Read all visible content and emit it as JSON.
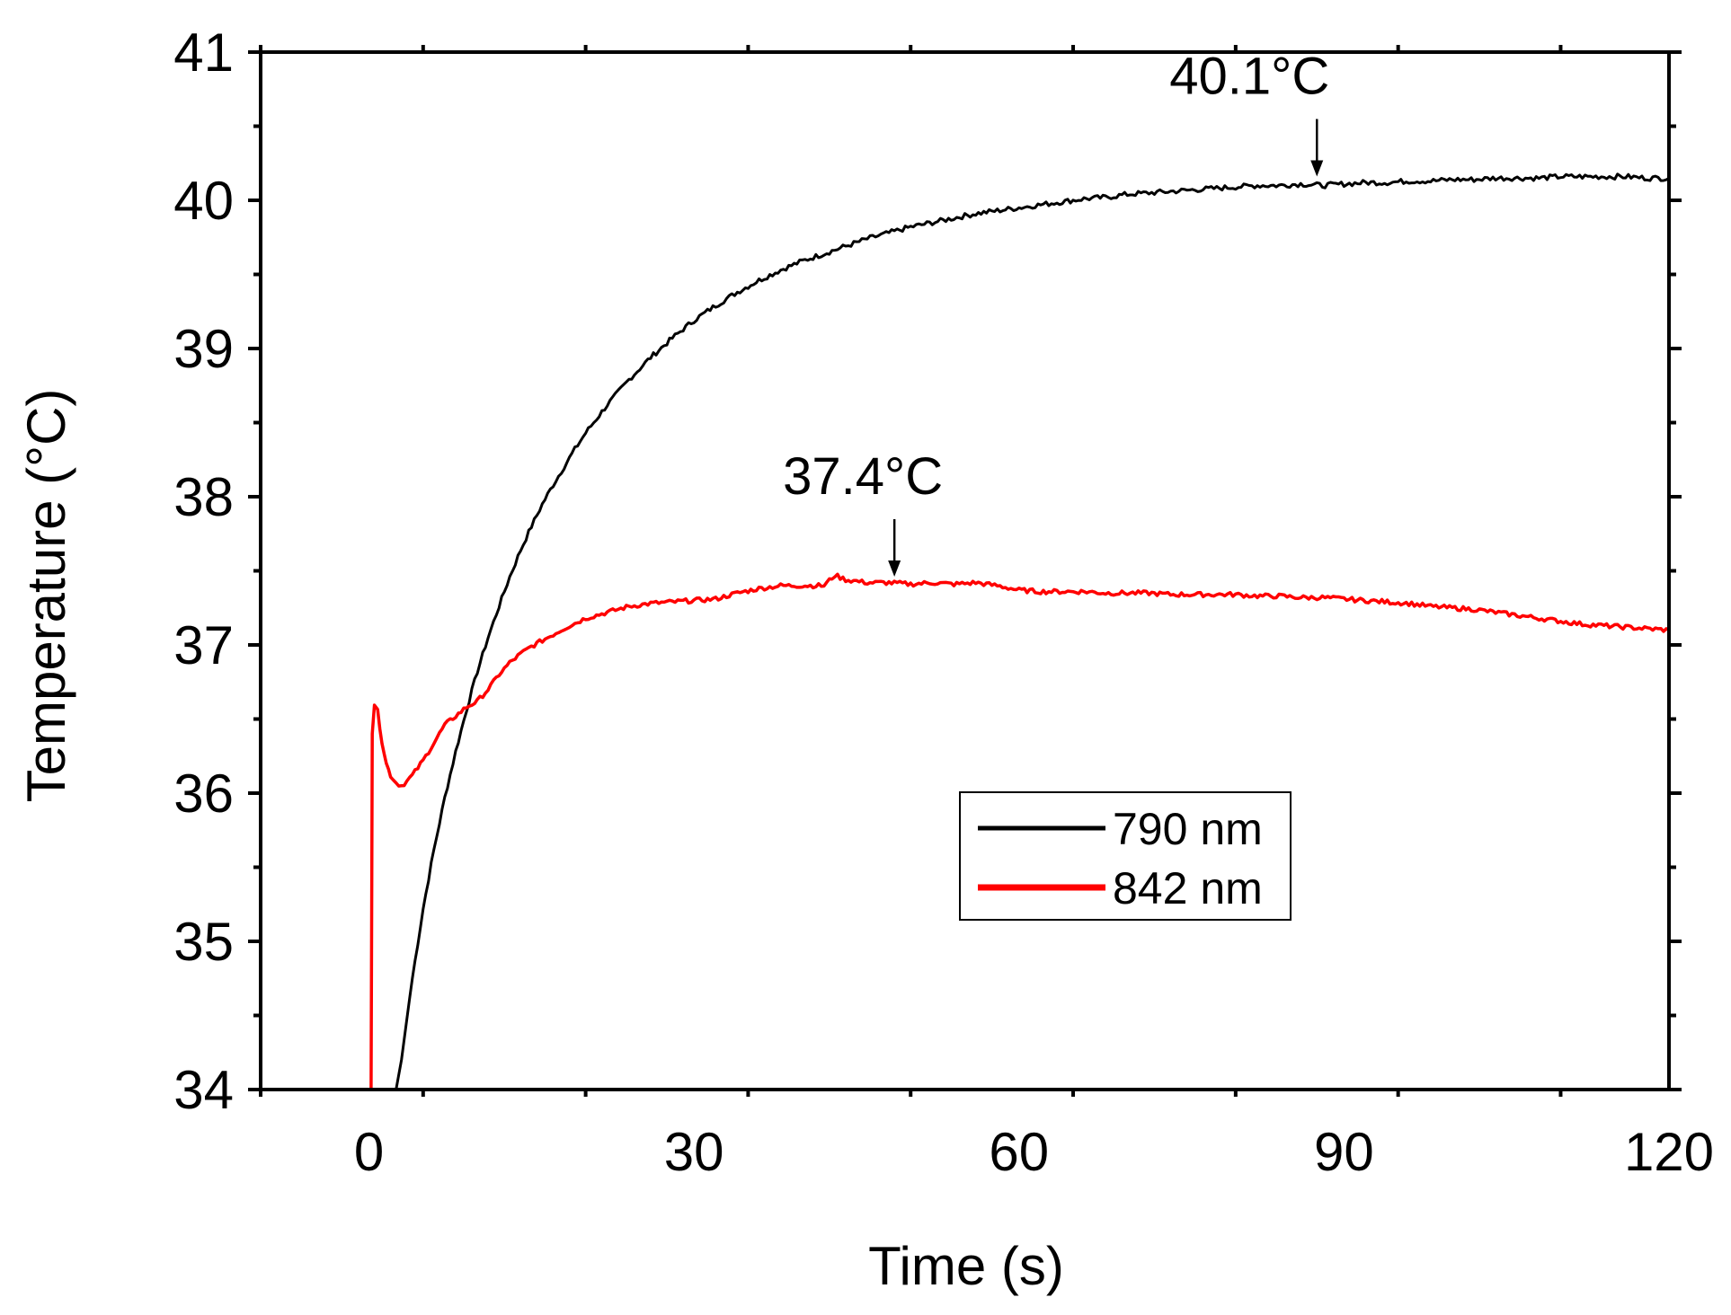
{
  "chart_data": {
    "type": "line",
    "title": "",
    "xlabel": "Time (s)",
    "ylabel": "Temperature (°C)",
    "xlim": [
      -10,
      120
    ],
    "ylim": [
      34,
      41
    ],
    "x_ticks": [
      0,
      30,
      60,
      90,
      120
    ],
    "x_tick_labels": [
      "0",
      "30",
      "60",
      "90",
      "120"
    ],
    "y_ticks": [
      34,
      35,
      36,
      37,
      38,
      39,
      40,
      41
    ],
    "y_tick_labels": [
      "34",
      "35",
      "36",
      "37",
      "38",
      "39",
      "40",
      "41"
    ],
    "grid": false,
    "legend_position": "center-right",
    "series": [
      {
        "name": "790 nm",
        "color": "#000000",
        "x": [
          2.5,
          3,
          4,
          5,
          6,
          7,
          8,
          9,
          10,
          11,
          12,
          13,
          14,
          15,
          16,
          17,
          18,
          19,
          20,
          22,
          24,
          26,
          28,
          30,
          32,
          34,
          36,
          38,
          40,
          42,
          44,
          46,
          48,
          50,
          52,
          54,
          56,
          58,
          60,
          62,
          64,
          66,
          68,
          70,
          72,
          74,
          76,
          78,
          80,
          82,
          84,
          86,
          88,
          90,
          92,
          94,
          96,
          98,
          100,
          102,
          104,
          106,
          108,
          110,
          112,
          114,
          116,
          118,
          120
        ],
        "y": [
          34.0,
          34.2,
          34.75,
          35.22,
          35.62,
          35.97,
          36.28,
          36.56,
          36.82,
          37.05,
          37.26,
          37.46,
          37.64,
          37.8,
          37.95,
          38.08,
          38.2,
          38.32,
          38.43,
          38.62,
          38.79,
          38.94,
          39.07,
          39.19,
          39.29,
          39.38,
          39.46,
          39.53,
          39.59,
          39.64,
          39.69,
          39.74,
          39.78,
          39.82,
          39.85,
          39.88,
          39.91,
          39.93,
          39.95,
          39.97,
          39.99,
          40.01,
          40.02,
          40.04,
          40.05,
          40.06,
          40.07,
          40.08,
          40.09,
          40.1,
          40.1,
          40.11,
          40.1,
          40.11,
          40.12,
          40.12,
          40.13,
          40.13,
          40.14,
          40.14,
          40.15,
          40.15,
          40.15,
          40.16,
          40.16,
          40.16,
          40.16,
          40.15,
          40.15
        ]
      },
      {
        "name": "842 nm",
        "color": "#ff0000",
        "x": [
          0.2,
          0.3,
          0.5,
          0.8,
          1.2,
          1.6,
          2,
          2.5,
          3,
          3.5,
          4,
          5,
          6,
          7,
          8,
          9,
          10,
          11,
          12,
          13,
          14,
          15,
          16,
          18,
          20,
          22,
          24,
          26,
          28,
          30,
          32,
          34,
          36,
          38,
          40,
          42,
          43,
          44,
          46,
          48,
          50,
          52,
          54,
          56,
          58,
          60,
          62,
          64,
          66,
          68,
          70,
          72,
          74,
          76,
          78,
          80,
          82,
          84,
          86,
          88,
          90,
          92,
          94,
          96,
          98,
          100,
          102,
          104,
          106,
          108,
          110,
          112,
          114,
          116,
          118,
          120
        ],
        "y": [
          34.0,
          36.4,
          36.6,
          36.55,
          36.35,
          36.2,
          36.12,
          36.07,
          36.05,
          36.08,
          36.12,
          36.22,
          36.34,
          36.46,
          36.52,
          36.58,
          36.62,
          36.7,
          36.8,
          36.88,
          36.94,
          36.99,
          37.03,
          37.11,
          37.18,
          37.22,
          37.26,
          37.28,
          37.29,
          37.3,
          37.31,
          37.35,
          37.38,
          37.4,
          37.4,
          37.4,
          37.47,
          37.44,
          37.42,
          37.42,
          37.41,
          37.42,
          37.41,
          37.42,
          37.4,
          37.37,
          37.36,
          37.36,
          37.36,
          37.35,
          37.35,
          37.35,
          37.34,
          37.34,
          37.34,
          37.34,
          37.33,
          37.33,
          37.32,
          37.32,
          37.31,
          37.3,
          37.29,
          37.28,
          37.26,
          37.25,
          37.24,
          37.22,
          37.2,
          37.18,
          37.16,
          37.14,
          37.13,
          37.12,
          37.11,
          37.1
        ]
      }
    ],
    "annotations": [
      {
        "label": "40.1°C",
        "x": 87.5,
        "y": 40.1
      },
      {
        "label": "37.4°C",
        "x": 48.5,
        "y": 37.4
      }
    ]
  }
}
